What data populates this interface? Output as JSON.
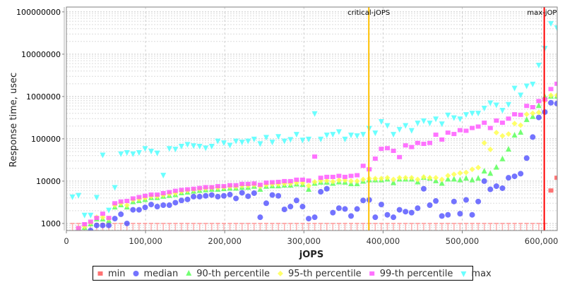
{
  "chart_data": {
    "type": "scatter",
    "xlabel": "jOPS",
    "ylabel": "Response time, usec",
    "xlim": [
      0,
      620000
    ],
    "ylim": [
      680,
      130000000
    ],
    "yscale": "log",
    "grid": true,
    "legend_placement": "bottom",
    "x_ticks": [
      0,
      100000,
      200000,
      300000,
      400000,
      500000,
      600000
    ],
    "x_tick_labels": [
      "0",
      "100,000",
      "200,000",
      "300,000",
      "400,000",
      "500,000",
      "600,000"
    ],
    "y_ticks": [
      1000,
      10000,
      100000,
      1000000,
      10000000,
      100000000
    ],
    "y_tick_labels": [
      "1000",
      "10000",
      "100000",
      "1000000",
      "10000000",
      "100000000"
    ],
    "x_step": 7650,
    "markers": [
      {
        "label": "critical-jOPS",
        "x": 382000,
        "color": "#ffc000"
      },
      {
        "label": "max-jOPS",
        "x": 603600,
        "color": "#ff0000"
      }
    ],
    "series": [
      {
        "name": "min",
        "color": "#ff5050",
        "shape": "square",
        "values": [
          1000,
          1000,
          1000,
          1000,
          1000,
          1000,
          1000,
          1000,
          1000,
          1000,
          1000,
          1000,
          1000,
          1000,
          1000,
          1000,
          1000,
          1000,
          1000,
          1000,
          1000,
          1000,
          1000,
          1000,
          1000,
          1000,
          1000,
          1000,
          1000,
          1000,
          1000,
          1000,
          1000,
          1000,
          1000,
          1000,
          1000,
          1000,
          1000,
          1000,
          1000,
          1000,
          1000,
          1000,
          1000,
          1000,
          1000,
          1000,
          1000,
          1000,
          1000,
          1000,
          1000,
          1000,
          1000,
          1000,
          1000,
          1000,
          1000,
          1000,
          1000,
          1000,
          1000,
          1000,
          1000,
          1000,
          1000,
          1000,
          1000,
          1000,
          1000,
          1000,
          1000,
          1000,
          1000,
          1000,
          1000,
          1000,
          1000,
          6000,
          12000
        ]
      },
      {
        "name": "median",
        "color": "#5050ff",
        "shape": "circle",
        "values": [
          null,
          null,
          null,
          680,
          900,
          900,
          900,
          1300,
          1650,
          1000,
          2100,
          2100,
          2400,
          2800,
          2500,
          2700,
          2700,
          3100,
          3500,
          3700,
          4300,
          4300,
          4500,
          4700,
          4300,
          4500,
          4800,
          3900,
          5300,
          4400,
          5200,
          1400,
          3000,
          4700,
          4500,
          2150,
          2500,
          3500,
          2500,
          1300,
          1400,
          5600,
          6600,
          1800,
          2300,
          2200,
          1500,
          2200,
          3500,
          3600,
          1400,
          2800,
          1600,
          1400,
          2100,
          1900,
          1800,
          2300,
          6600,
          2700,
          3400,
          1500,
          1600,
          3300,
          1700,
          3600,
          1600,
          3300,
          10000,
          6400,
          7600,
          6800,
          12000,
          13000,
          15000,
          35000,
          110000,
          320000,
          430000,
          710000,
          680000
        ]
      },
      {
        "name": "90-th percentile",
        "color": "#50ff50",
        "shape": "triangle-up",
        "values": [
          null,
          730,
          790,
          960,
          1250,
          1250,
          1150,
          2400,
          2700,
          2400,
          3200,
          3400,
          3600,
          4000,
          4000,
          4300,
          4500,
          4700,
          5200,
          5400,
          5700,
          5900,
          6100,
          6300,
          6300,
          6500,
          6700,
          6700,
          7000,
          7000,
          7400,
          6300,
          7400,
          7600,
          7600,
          7900,
          7900,
          8400,
          8200,
          6300,
          8700,
          9300,
          9300,
          8700,
          9400,
          9300,
          8500,
          8500,
          9800,
          10500,
          10500,
          10500,
          11000,
          9000,
          11000,
          11000,
          11000,
          9400,
          12000,
          11500,
          10000,
          8700,
          11000,
          11000,
          10500,
          11500,
          10500,
          11500,
          17000,
          15000,
          21000,
          33000,
          56000,
          120000,
          140000,
          280000,
          330000,
          600000,
          970000,
          1000000,
          1000000
        ]
      },
      {
        "name": "95-th percentile",
        "color": "#ffff50",
        "shape": "diamond",
        "values": [
          null,
          780,
          850,
          1050,
          1400,
          1400,
          1300,
          2700,
          3000,
          2700,
          3600,
          3800,
          4000,
          4400,
          4400,
          4700,
          5000,
          5200,
          5700,
          6000,
          6300,
          6500,
          6700,
          7000,
          7000,
          7200,
          7400,
          7400,
          7800,
          7800,
          8200,
          7500,
          8200,
          8500,
          8500,
          8700,
          8800,
          9200,
          9000,
          7800,
          9600,
          10200,
          10200,
          9800,
          10500,
          10500,
          10000,
          10000,
          11000,
          11500,
          11500,
          11500,
          12000,
          11000,
          12000,
          12000,
          12000,
          11000,
          12500,
          12000,
          12000,
          11000,
          13500,
          14500,
          15500,
          16000,
          19000,
          21000,
          80000,
          56000,
          140000,
          117000,
          130000,
          230000,
          210000,
          380000,
          400000,
          420000,
          800000,
          1070000,
          1070000
        ]
      },
      {
        "name": "99-th percentile",
        "color": "#ff50ff",
        "shape": "square",
        "values": [
          null,
          780,
          960,
          1100,
          1350,
          1700,
          1350,
          3000,
          3300,
          3400,
          3900,
          4200,
          4500,
          4800,
          4800,
          5200,
          5500,
          5900,
          6200,
          6400,
          6600,
          6900,
          7200,
          7200,
          7600,
          7600,
          8000,
          8000,
          8600,
          8600,
          8800,
          8200,
          9200,
          9400,
          9600,
          10000,
          10000,
          10800,
          10800,
          10300,
          38000,
          12000,
          12600,
          12600,
          13300,
          12600,
          13300,
          13800,
          23000,
          19000,
          34000,
          58000,
          60000,
          52000,
          37000,
          70000,
          64000,
          80000,
          76000,
          80000,
          125000,
          96000,
          140000,
          130000,
          160000,
          155000,
          180000,
          195000,
          240000,
          180000,
          270000,
          240000,
          300000,
          380000,
          370000,
          600000,
          560000,
          780000,
          850000,
          1500000,
          2000000
        ]
      },
      {
        "name": "max",
        "color": "#50ffff",
        "shape": "triangle-down",
        "values": [
          4300,
          4700,
          1600,
          1600,
          4200,
          42000,
          2100,
          7200,
          45000,
          48000,
          45000,
          48000,
          60000,
          52000,
          47000,
          14000,
          60000,
          58000,
          68000,
          75000,
          70000,
          68000,
          62000,
          68000,
          90000,
          82000,
          72000,
          90000,
          85000,
          90000,
          100000,
          78000,
          110000,
          85000,
          115000,
          90000,
          98000,
          130000,
          95000,
          100000,
          400000,
          100000,
          125000,
          130000,
          150000,
          100000,
          125000,
          120000,
          130000,
          180000,
          140000,
          260000,
          210000,
          130000,
          170000,
          210000,
          160000,
          240000,
          270000,
          240000,
          300000,
          230000,
          370000,
          320000,
          300000,
          380000,
          410000,
          410000,
          540000,
          720000,
          640000,
          480000,
          660000,
          1600000,
          1100000,
          1800000,
          2000000,
          5600000,
          14000000,
          54000000,
          43000000
        ]
      }
    ]
  }
}
